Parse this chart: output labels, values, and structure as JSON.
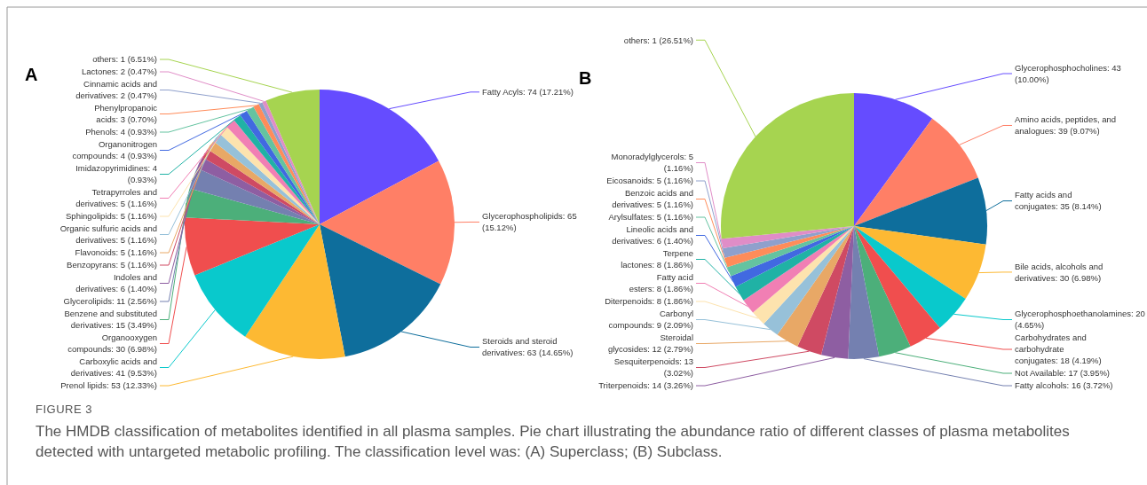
{
  "chart_data": [
    {
      "type": "pie",
      "title": "A",
      "categories": [
        "Fatty Acyls",
        "Glycerophospholipids",
        "Steroids and steroid derivatives",
        "Prenol lipids",
        "Carboxylic acids and derivatives",
        "Organooxygen compounds",
        "Benzene and substituted derivatives",
        "Glycerolipids",
        "Indoles and derivatives",
        "Benzopyrans",
        "Flavonoids",
        "Organic sulfuric acids and derivatives",
        "Sphingolipids",
        "Tetrapyrroles and derivatives",
        "Imidazopyrimidines",
        "Organonitrogen compounds",
        "Phenols",
        "Phenylpropanoic acids",
        "Cinnamic acids and derivatives",
        "Lactones",
        "others"
      ],
      "values": [
        17.21,
        15.12,
        14.65,
        12.33,
        9.53,
        6.98,
        3.49,
        2.56,
        1.4,
        1.16,
        1.16,
        1.16,
        1.16,
        1.16,
        0.93,
        0.93,
        0.93,
        0.7,
        0.47,
        0.47,
        6.51
      ],
      "value_labels": [
        "74 (17.21%)",
        "65 (15.12%)",
        "63 (14.65%)",
        "53 (12.33%)",
        "41 (9.53%)",
        "30 (6.98%)",
        "15 (3.49%)",
        "11 (2.56%)",
        "6 (1.40%)",
        "5 (1.16%)",
        "5 (1.16%)",
        "5 (1.16%)",
        "5 (1.16%)",
        "5 (1.16%)",
        "4 (0.93%)",
        "4 (0.93%)",
        "4 (0.93%)",
        "3 (0.70%)",
        "2 (0.47%)",
        "2 (0.47%)",
        "1 (6.51%)"
      ],
      "colors": [
        "#654cff",
        "#ff7f66",
        "#0e6e9c",
        "#fdb933",
        "#09c9cc",
        "#f04e4e",
        "#4caf7a",
        "#7480b0",
        "#8e5ea2",
        "#cf4a63",
        "#e8a866",
        "#97c1d9",
        "#fde3ae",
        "#f17fb4",
        "#20b2a5",
        "#4169e1",
        "#64c3a0",
        "#ff8c5a",
        "#8fa0cc",
        "#e08dc7",
        "#a6d450"
      ],
      "annotations": [
        "FIGURE 3",
        "The HMDB classification of metabolites identified in all plasma samples. Pie chart illustrating the abundance ratio of different classes of plasma metabolites detected with untargeted metabolic profiling. The classification level was: (A) Superclass; (B) Subclass."
      ]
    },
    {
      "type": "pie",
      "title": "B",
      "categories": [
        "Glycerophosphocholines",
        "Amino acids, peptides, and analogues",
        "Fatty acids and conjugates",
        "Bile acids, alcohols and derivatives",
        "Glycerophosphoethanolamines",
        "Carbohydrates and carbohydrate conjugates",
        "Not Available",
        "Fatty alcohols",
        "Triterpenoids",
        "Sesquiterpenoids",
        "Steroidal glycosides",
        "Carbonyl compounds",
        "Diterpenoids",
        "Fatty acid esters",
        "Terpene lactones",
        "Lineolic acids and derivatives",
        "Arylsulfates",
        "Benzoic acids and derivatives",
        "Eicosanoids",
        "Monoradylglycerols",
        "others"
      ],
      "values": [
        10.0,
        9.07,
        8.14,
        6.98,
        4.65,
        4.19,
        3.95,
        3.72,
        3.26,
        3.02,
        2.79,
        2.09,
        1.86,
        1.86,
        1.86,
        1.4,
        1.16,
        1.16,
        1.16,
        1.16,
        26.51
      ],
      "value_labels": [
        "43 (10.00%)",
        "39 (9.07%)",
        "35 (8.14%)",
        "30 (6.98%)",
        "20 (4.65%)",
        "18 (4.19%)",
        "17 (3.95%)",
        "16 (3.72%)",
        "14 (3.26%)",
        "13 (3.02%)",
        "12 (2.79%)",
        "9 (2.09%)",
        "8 (1.86%)",
        "8 (1.86%)",
        "8 (1.86%)",
        "6 (1.40%)",
        "5 (1.16%)",
        "5 (1.16%)",
        "5 (1.16%)",
        "5 (1.16%)",
        "1 (26.51%)"
      ],
      "colors": [
        "#654cff",
        "#ff7f66",
        "#0e6e9c",
        "#fdb933",
        "#09c9cc",
        "#f04e4e",
        "#4caf7a",
        "#7480b0",
        "#8e5ea2",
        "#cf4a63",
        "#e8a866",
        "#97c1d9",
        "#fde3ae",
        "#f17fb4",
        "#20b2a5",
        "#4169e1",
        "#64c3a0",
        "#ff8c5a",
        "#8fa0cc",
        "#e08dc7",
        "#a6d450"
      ]
    }
  ]
}
